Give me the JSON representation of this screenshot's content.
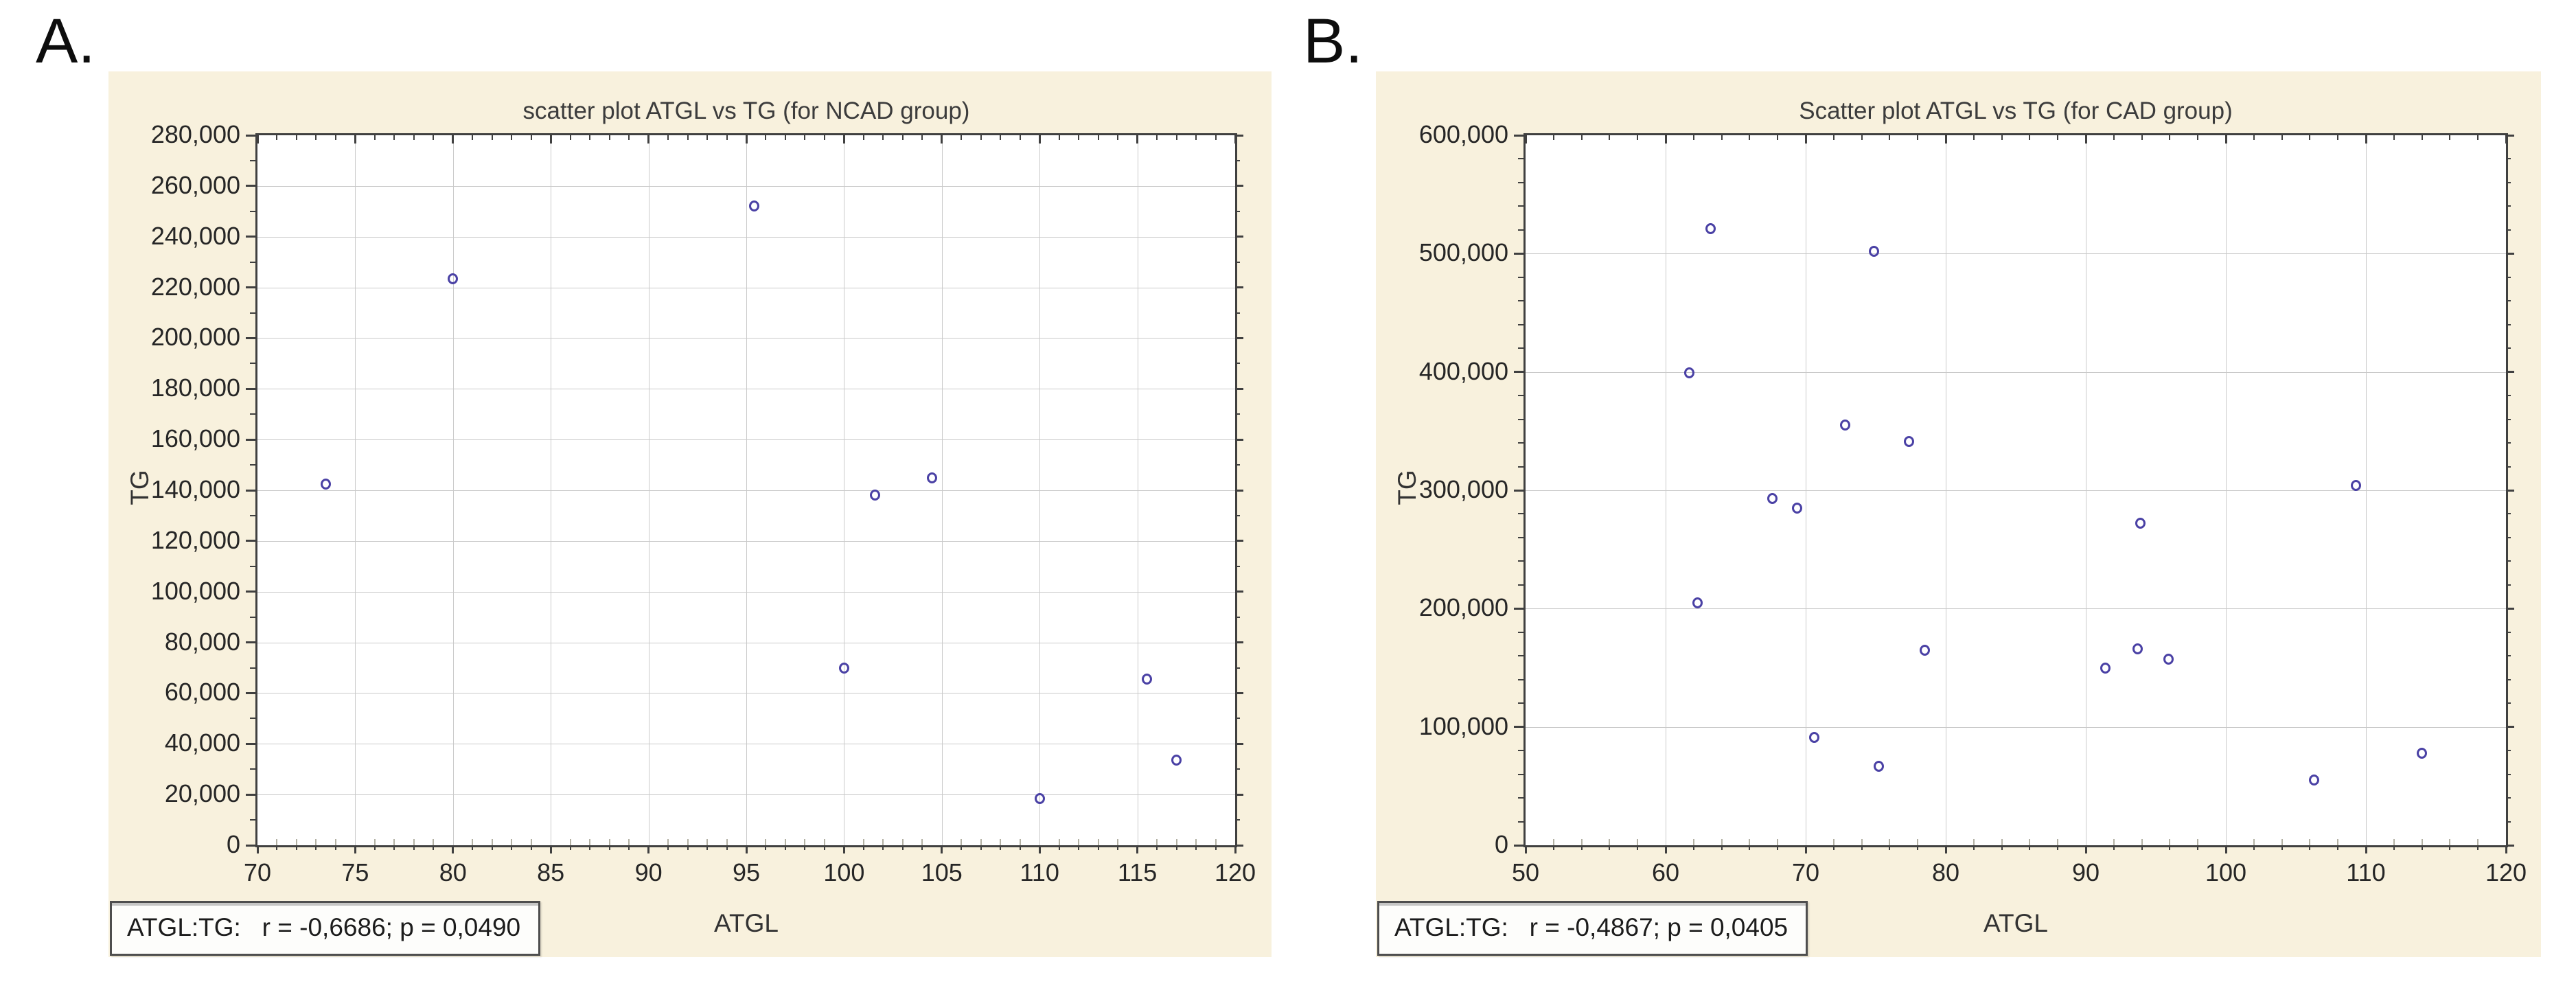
{
  "figure_labels": {
    "a": "A.",
    "b": "B."
  },
  "style": {
    "page_background": "#ffffff",
    "panel_background": "#f8f1dd",
    "plot_background": "#ffffff",
    "grid_color": "#cacaca",
    "axis_color": "#404040",
    "point_color": "#4a41a5",
    "tick_text_color": "#262626",
    "title_color": "#3c3c3c"
  },
  "chart_data": [
    {
      "id": "ncad",
      "type": "scatter",
      "title": "scatter plot ATGL vs TG (for NCAD group)",
      "xlabel": "ATGL",
      "ylabel": "TG",
      "xlim": [
        70,
        120
      ],
      "ylim": [
        0,
        280000
      ],
      "x_major_step": 5,
      "x_minor_step": 1,
      "y_major_step": 20000,
      "y_minor_step": 10000,
      "grid": "major-both",
      "legend": "none",
      "marker": "open-circle",
      "x_tick_labels": [
        "70",
        "75",
        "80",
        "85",
        "90",
        "95",
        "100",
        "105",
        "110",
        "115",
        "120"
      ],
      "y_tick_labels": [
        "0",
        "20,000",
        "40,000",
        "60,000",
        "80,000",
        "100,000",
        "120,000",
        "140,000",
        "160,000",
        "180,000",
        "200,000",
        "220,000",
        "240,000",
        "260,000",
        "280,000"
      ],
      "annotation": "ATGL:TG:   r = -0,6686; p = 0,0490",
      "points": [
        [
          73.5,
          142500
        ],
        [
          80,
          223500
        ],
        [
          95.4,
          252000
        ],
        [
          100,
          70000
        ],
        [
          101.6,
          138000
        ],
        [
          104.5,
          145000
        ],
        [
          110,
          18500
        ],
        [
          115.5,
          65500
        ],
        [
          117,
          33500
        ]
      ]
    },
    {
      "id": "cad",
      "type": "scatter",
      "title": "Scatter plot ATGL vs TG (for CAD group)",
      "xlabel": "ATGL",
      "ylabel": "TG",
      "xlim": [
        50,
        120
      ],
      "ylim": [
        0,
        600000
      ],
      "x_major_step": 10,
      "x_minor_step": 2,
      "y_major_step": 100000,
      "y_minor_step": 20000,
      "grid": "major-both",
      "legend": "none",
      "marker": "open-circle",
      "x_tick_labels": [
        "50",
        "60",
        "70",
        "80",
        "90",
        "100",
        "110",
        "120"
      ],
      "y_tick_labels": [
        "0",
        "100,000",
        "200,000",
        "300,000",
        "400,000",
        "500,000",
        "600,000"
      ],
      "annotation": "ATGL:TG:   r = -0,4867; p = 0,0405",
      "points": [
        [
          61.7,
          399000
        ],
        [
          63.2,
          521000
        ],
        [
          62.3,
          205000
        ],
        [
          67.6,
          293000
        ],
        [
          69.4,
          285000
        ],
        [
          70.6,
          91000
        ],
        [
          72.8,
          355000
        ],
        [
          74.9,
          502000
        ],
        [
          75.2,
          67000
        ],
        [
          77.4,
          341000
        ],
        [
          78.5,
          165000
        ],
        [
          91.4,
          150000
        ],
        [
          93.9,
          272000
        ],
        [
          93.7,
          166000
        ],
        [
          95.9,
          157000
        ],
        [
          106.3,
          55000
        ],
        [
          109.3,
          304000
        ],
        [
          114,
          78000
        ]
      ]
    }
  ]
}
